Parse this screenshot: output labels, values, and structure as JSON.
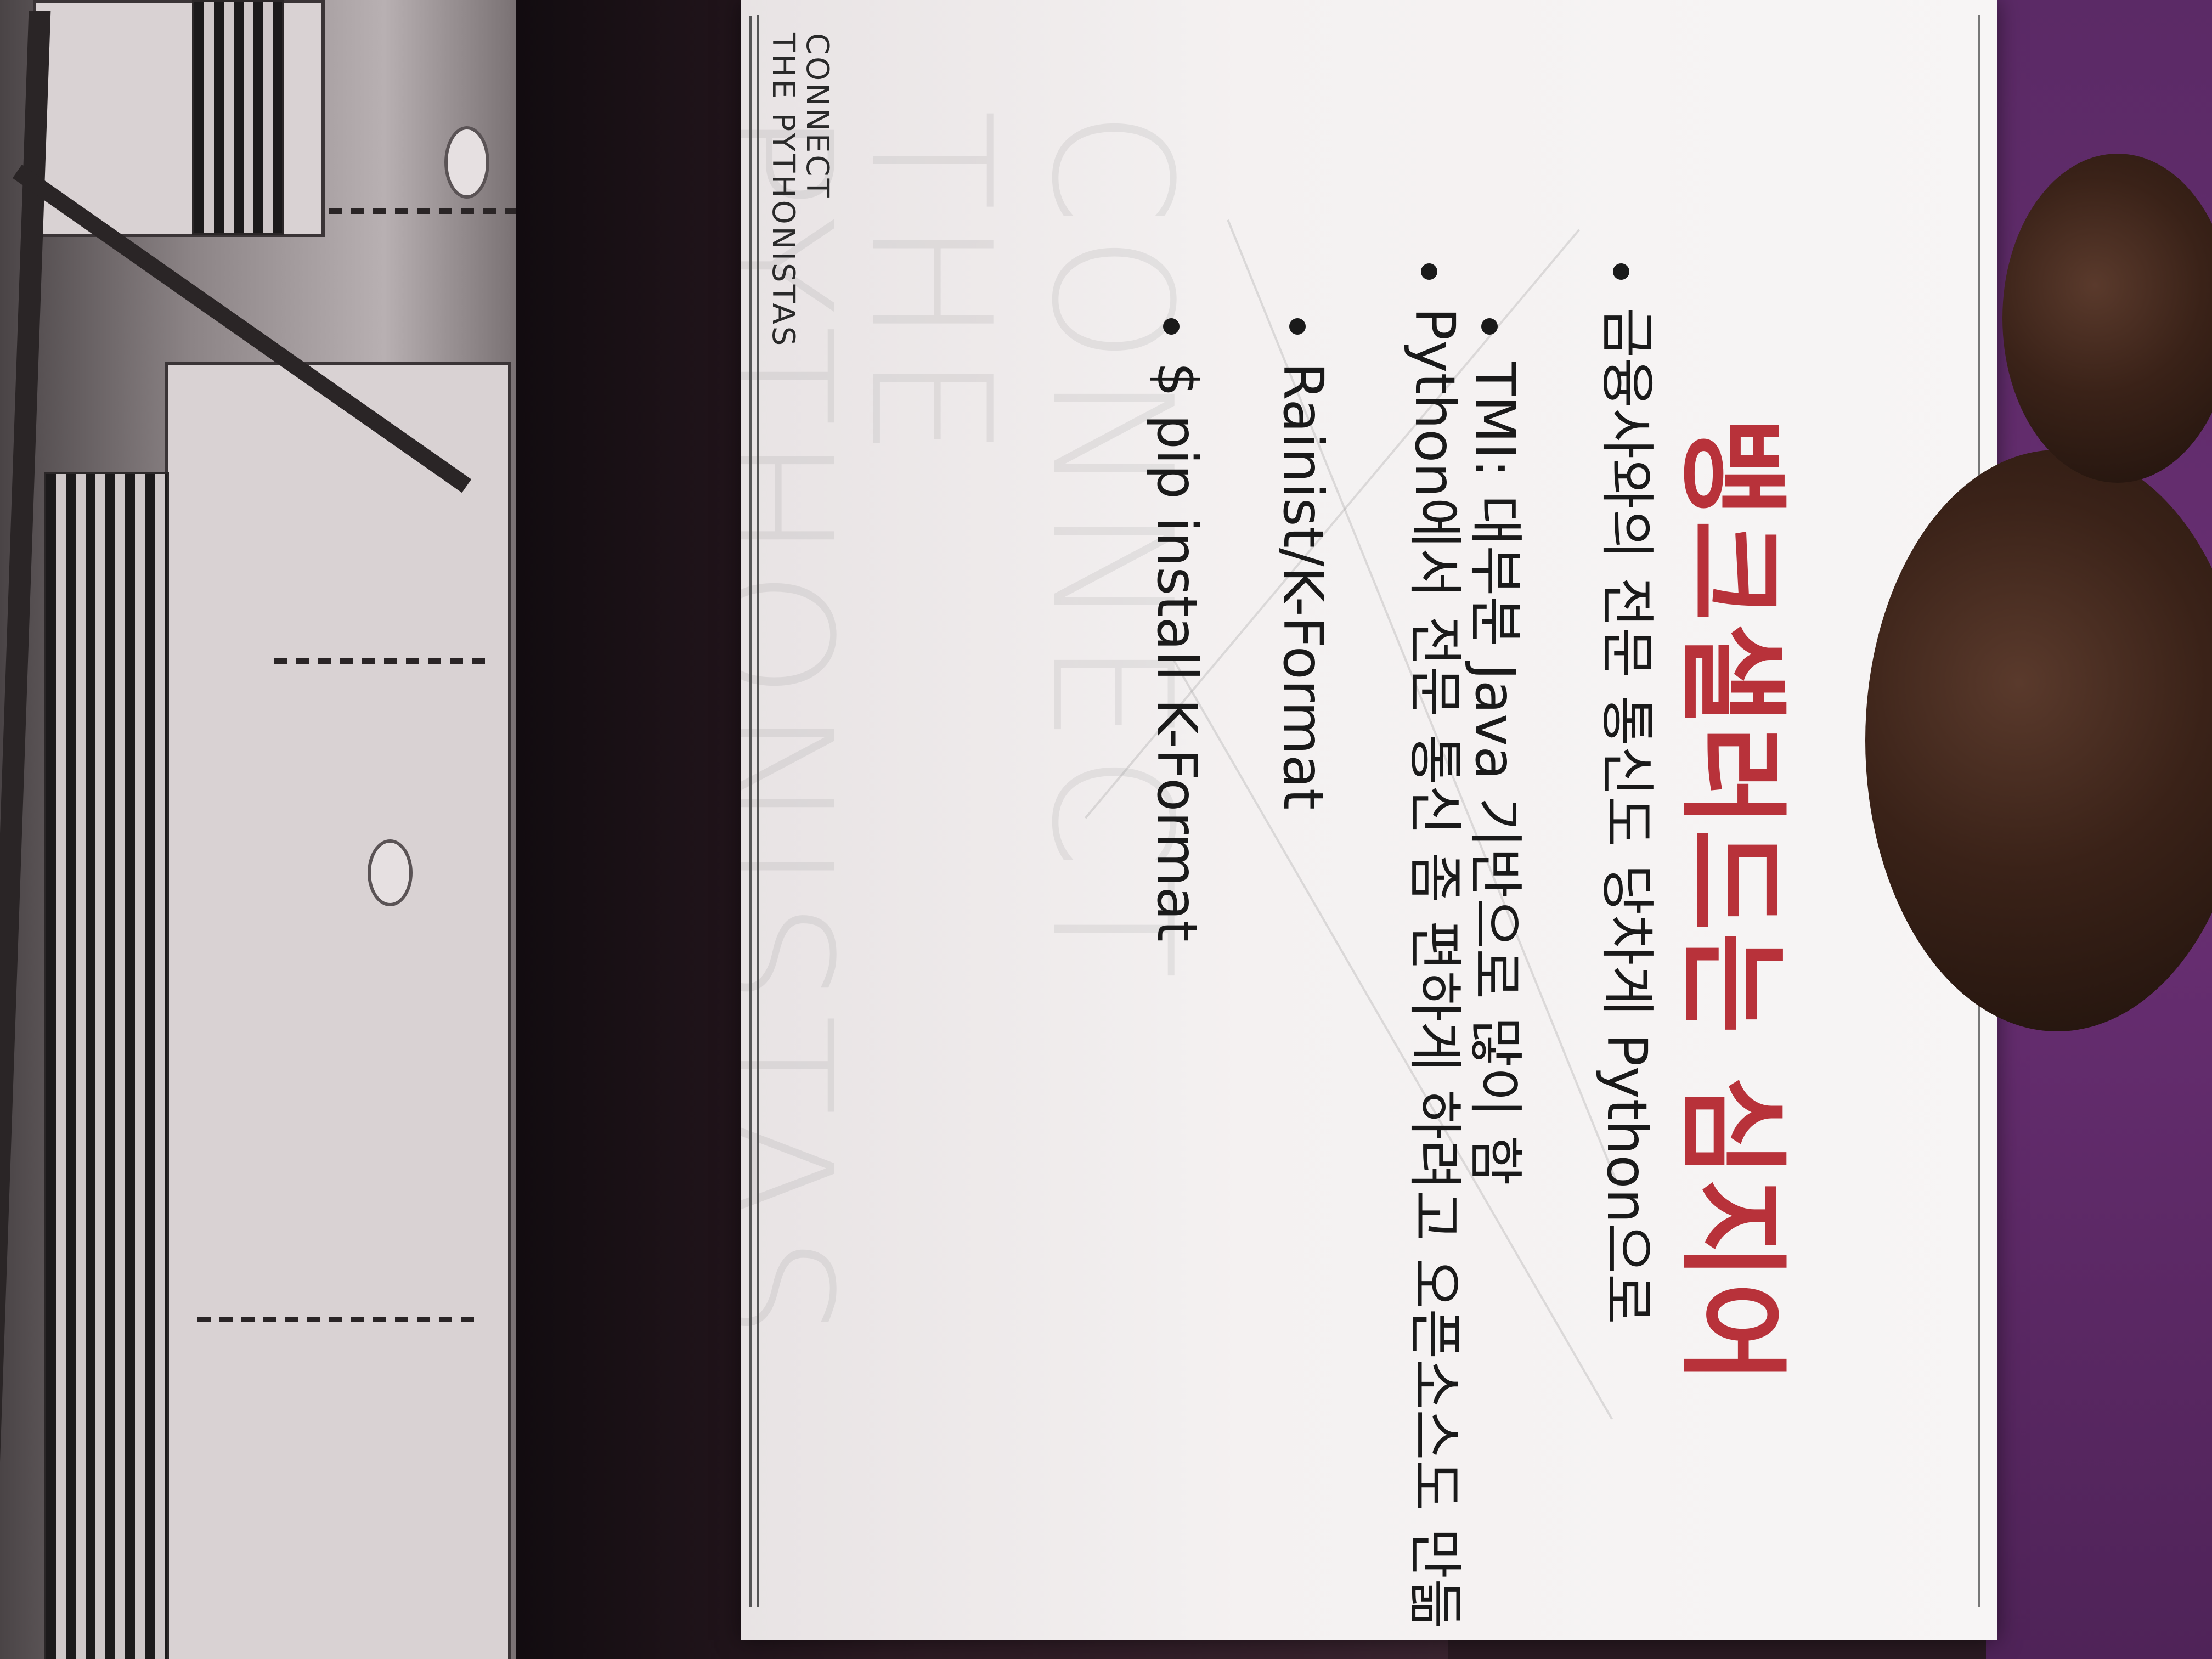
{
  "slide": {
    "title": "뱅크샐러드는 심지어",
    "bullets": [
      "금융사와의 전문 통신도 당차게 Python으로",
      "TMI: 대부분 Java 기반으로 많이 함",
      "Python에서 전문 통신 좀 편하게 하려고 오픈소스도 만듦",
      "Rainist/K-Format",
      "$ pip install K-Format"
    ],
    "watermark": [
      "CONNECT",
      "THE",
      "PYTHONISTAS"
    ],
    "logo": {
      "line1": "CONNECT",
      "line2": "THE PYTHONISTAS"
    }
  },
  "colors": {
    "title": "#b8323a",
    "slide_bg": "#f4f1f1",
    "text": "#1a1a1a",
    "wall": "#6a2f74"
  }
}
